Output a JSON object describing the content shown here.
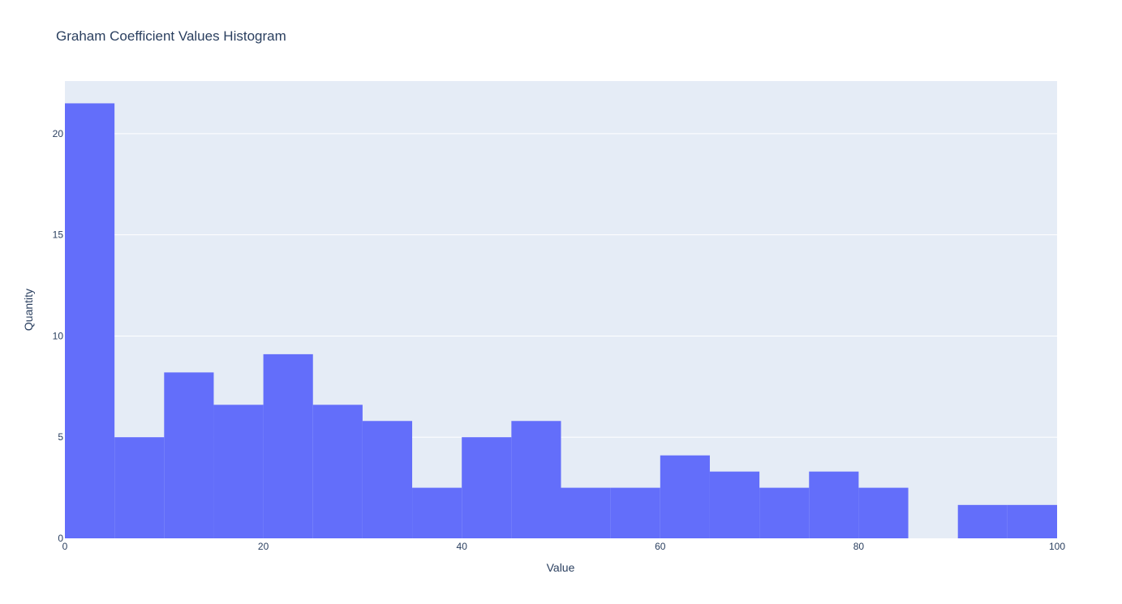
{
  "colors": {
    "plot_background": "#e5ecf6",
    "bar_fill": "#636efa",
    "grid": "#ffffff",
    "text": "#2a3f5f"
  },
  "chart_data": {
    "type": "bar",
    "title": "Graham Coefficient Values Histogram",
    "xlabel": "Value",
    "ylabel": "Quantity",
    "xlim": [
      0,
      100
    ],
    "ylim": [
      0,
      22.6
    ],
    "x_ticks": [
      0,
      20,
      40,
      60,
      80,
      100
    ],
    "y_ticks": [
      0,
      5,
      10,
      15,
      20
    ],
    "grid": true,
    "legend": "none",
    "bin_width": 5,
    "bins": [
      {
        "start": 0,
        "end": 5,
        "value": 21.5
      },
      {
        "start": 5,
        "end": 10,
        "value": 5
      },
      {
        "start": 10,
        "end": 15,
        "value": 8.2
      },
      {
        "start": 15,
        "end": 20,
        "value": 6.6
      },
      {
        "start": 20,
        "end": 25,
        "value": 9.1
      },
      {
        "start": 25,
        "end": 30,
        "value": 6.6
      },
      {
        "start": 30,
        "end": 35,
        "value": 5.8
      },
      {
        "start": 35,
        "end": 40,
        "value": 2.5
      },
      {
        "start": 40,
        "end": 45,
        "value": 5
      },
      {
        "start": 45,
        "end": 50,
        "value": 5.8
      },
      {
        "start": 50,
        "end": 55,
        "value": 2.5
      },
      {
        "start": 55,
        "end": 60,
        "value": 2.5
      },
      {
        "start": 60,
        "end": 65,
        "value": 4.1
      },
      {
        "start": 65,
        "end": 70,
        "value": 3.3
      },
      {
        "start": 70,
        "end": 75,
        "value": 2.5
      },
      {
        "start": 75,
        "end": 80,
        "value": 3.3
      },
      {
        "start": 80,
        "end": 85,
        "value": 2.5
      },
      {
        "start": 85,
        "end": 90,
        "value": 0
      },
      {
        "start": 90,
        "end": 95,
        "value": 1.65
      },
      {
        "start": 95,
        "end": 100,
        "value": 1.65
      }
    ]
  }
}
